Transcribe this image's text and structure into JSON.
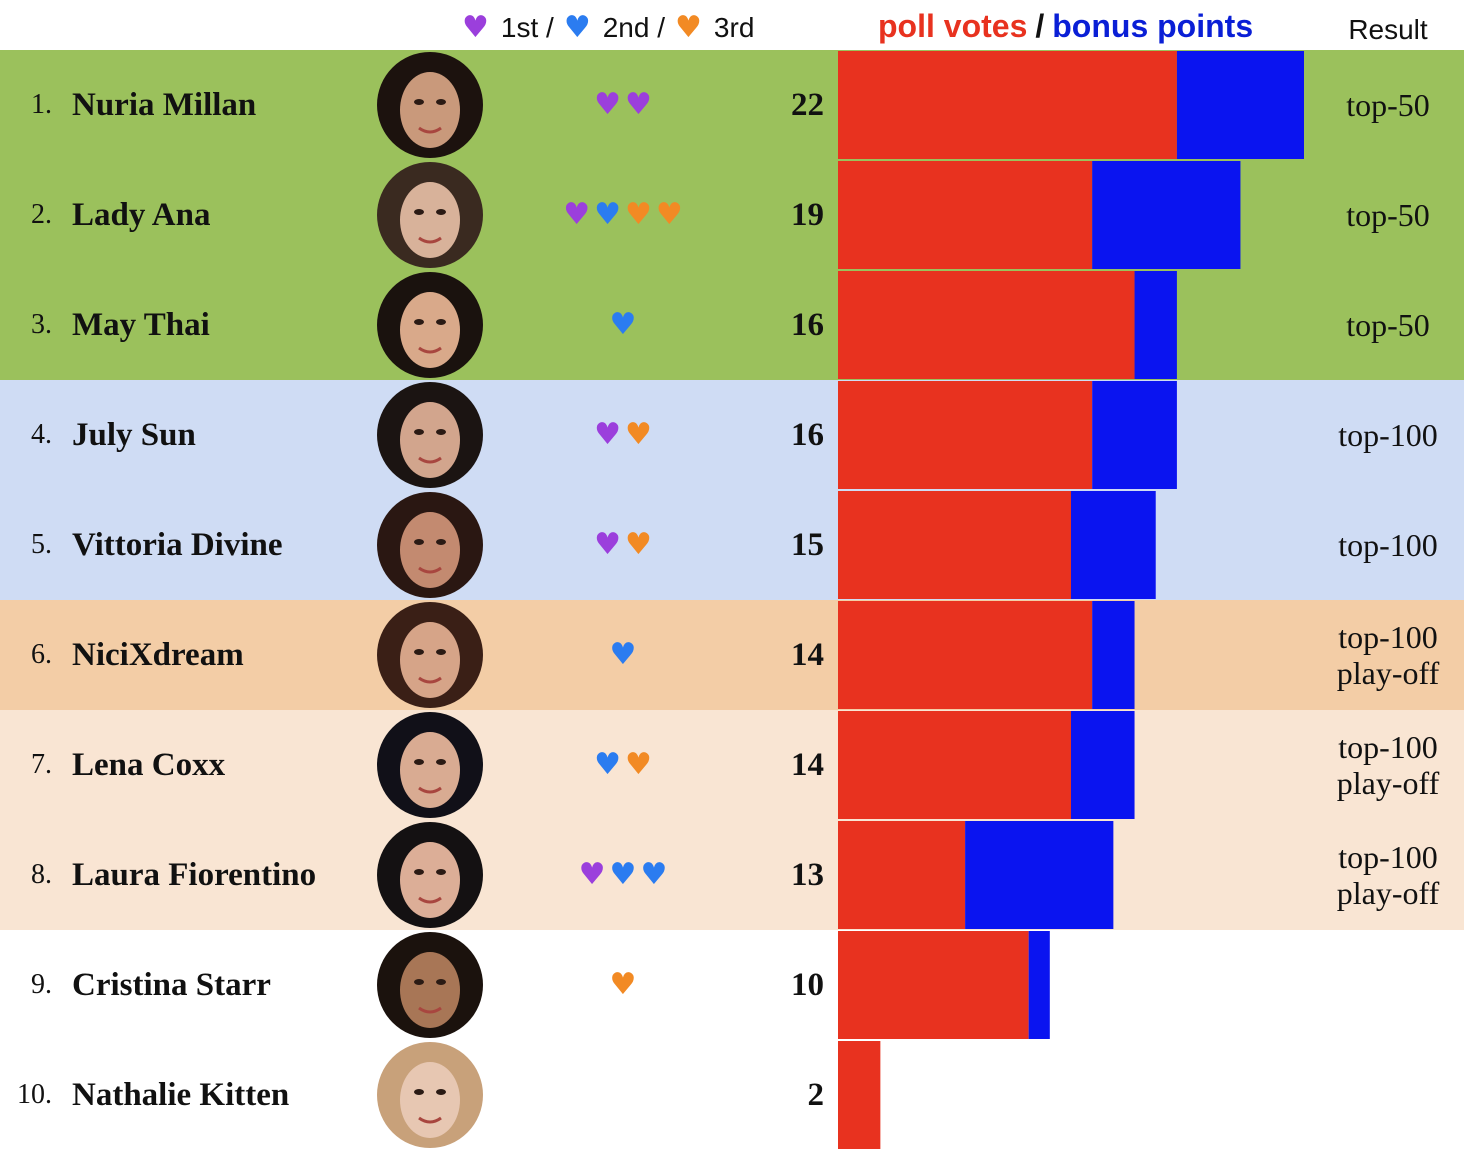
{
  "legend": {
    "first_label": "1st /",
    "second_label": "2nd /",
    "third_label": "3rd",
    "poll_label": "poll votes",
    "slash": "/",
    "bonus_label": "bonus points",
    "result_label": "Result"
  },
  "colors": {
    "first": "#9b3fdc",
    "second": "#2b7cf0",
    "third": "#f28a24",
    "poll": "#e8321f",
    "bonus": "#0a14f0",
    "top50_bg": "#9bc15c",
    "top100_bg": "#cfdcf4",
    "playoff_dark_bg": "#f3cda6",
    "playoff_light_bg": "#f9e5d3",
    "none_bg": "#ffffff"
  },
  "chart_data": {
    "type": "bar",
    "orientation": "horizontal",
    "stacked": true,
    "categories": [
      "Nuria Millan",
      "Lady Ana",
      "May Thai",
      "July Sun",
      "Vittoria Divine",
      "NiciXdream",
      "Lena Coxx",
      "Laura Fiorentino",
      "Cristina Starr",
      "Nathalie Kitten"
    ],
    "series": [
      {
        "name": "poll votes",
        "values": [
          16,
          12,
          14,
          12,
          11,
          12,
          11,
          6,
          9,
          2
        ]
      },
      {
        "name": "bonus points",
        "values": [
          6,
          7,
          2,
          4,
          4,
          2,
          3,
          7,
          1,
          0
        ]
      }
    ],
    "xlim": [
      0,
      22
    ]
  },
  "rows": [
    {
      "rank": "1.",
      "name": "Nuria Millan",
      "hearts": [
        "first",
        "first"
      ],
      "score": "22",
      "result": [
        "top-50"
      ],
      "group": "top50",
      "skin": "#c9997b",
      "hair": "#1c120e"
    },
    {
      "rank": "2.",
      "name": "Lady Ana",
      "hearts": [
        "first",
        "second",
        "third",
        "third"
      ],
      "score": "19",
      "result": [
        "top-50"
      ],
      "group": "top50",
      "skin": "#d8b29a",
      "hair": "#3a2a20"
    },
    {
      "rank": "3.",
      "name": "May Thai",
      "hearts": [
        "second"
      ],
      "score": "16",
      "result": [
        "top-50"
      ],
      "group": "top50",
      "skin": "#d9a98a",
      "hair": "#1a120e"
    },
    {
      "rank": "4.",
      "name": "July Sun",
      "hearts": [
        "first",
        "third"
      ],
      "score": "16",
      "result": [
        "top-100"
      ],
      "group": "top100",
      "skin": "#d2a58d",
      "hair": "#1b1412"
    },
    {
      "rank": "5.",
      "name": "Vittoria Divine",
      "hearts": [
        "first",
        "third"
      ],
      "score": "15",
      "result": [
        "top-100"
      ],
      "group": "top100",
      "skin": "#c38a70",
      "hair": "#2a1712"
    },
    {
      "rank": "6.",
      "name": "NiciXdream",
      "hearts": [
        "second"
      ],
      "score": "14",
      "result": [
        "top-100",
        "play-off"
      ],
      "group": "playoff_dark",
      "skin": "#d6a488",
      "hair": "#3a1f16"
    },
    {
      "rank": "7.",
      "name": "Lena Coxx",
      "hearts": [
        "second",
        "third"
      ],
      "score": "14",
      "result": [
        "top-100",
        "play-off"
      ],
      "group": "playoff_light",
      "skin": "#d9ab92",
      "hair": "#111018"
    },
    {
      "rank": "8.",
      "name": "Laura Fiorentino",
      "hearts": [
        "first",
        "second",
        "second"
      ],
      "score": "13",
      "result": [
        "top-100",
        "play-off"
      ],
      "group": "playoff_light",
      "skin": "#dcae97",
      "hair": "#141112"
    },
    {
      "rank": "9.",
      "name": "Cristina Starr",
      "hearts": [
        "third"
      ],
      "score": "10",
      "result": [],
      "group": "none",
      "skin": "#a87656",
      "hair": "#1b120d"
    },
    {
      "rank": "10.",
      "name": "Nathalie Kitten",
      "hearts": [],
      "score": "2",
      "result": [],
      "group": "none",
      "skin": "#e7c7b2",
      "hair": "#c8a17a"
    }
  ]
}
